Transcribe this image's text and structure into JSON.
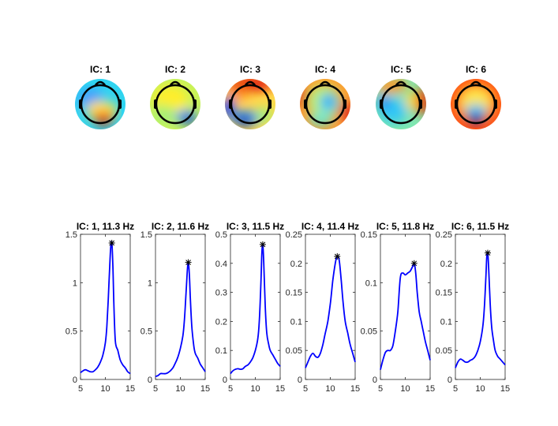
{
  "topomaps": [
    {
      "title": "IC: 1"
    },
    {
      "title": "IC: 2"
    },
    {
      "title": "IC: 3"
    },
    {
      "title": "IC: 4"
    },
    {
      "title": "IC: 5"
    },
    {
      "title": "IC: 6"
    }
  ],
  "chart_data": [
    {
      "type": "line",
      "title": "IC: 1, 11.3 Hz",
      "xlim": [
        5,
        15
      ],
      "ylim": [
        0,
        1.5
      ],
      "xticks": [
        "5",
        "10",
        "15"
      ],
      "yticks": [
        "0",
        "0.5",
        "1",
        "1.5"
      ],
      "peak": {
        "x": 11.3,
        "y": 1.41
      },
      "color": "#0000ff",
      "x": [
        5,
        5.5,
        6,
        6.5,
        7,
        7.5,
        8,
        8.5,
        9,
        9.5,
        10,
        10.3,
        10.6,
        10.9,
        11.1,
        11.3,
        11.5,
        11.7,
        12,
        12.5,
        13,
        13.5,
        14,
        14.5,
        15
      ],
      "y": [
        0.07,
        0.09,
        0.1,
        0.09,
        0.08,
        0.08,
        0.1,
        0.13,
        0.18,
        0.25,
        0.38,
        0.55,
        0.85,
        1.2,
        1.38,
        1.41,
        1.2,
        0.8,
        0.4,
        0.3,
        0.2,
        0.15,
        0.12,
        0.08,
        0.06
      ]
    },
    {
      "type": "line",
      "title": "IC: 2, 11.6 Hz",
      "xlim": [
        5,
        15
      ],
      "ylim": [
        0,
        1.5
      ],
      "xticks": [
        "5",
        "10",
        "15"
      ],
      "yticks": [
        "0",
        "0.5",
        "1",
        "1.5"
      ],
      "peak": {
        "x": 11.6,
        "y": 1.21
      },
      "color": "#0000ff",
      "x": [
        5,
        5.5,
        6,
        6.5,
        7,
        7.5,
        8,
        8.5,
        9,
        9.5,
        10,
        10.5,
        10.8,
        11.1,
        11.4,
        11.6,
        11.8,
        12,
        12.3,
        12.7,
        13,
        13.5,
        14,
        14.5,
        15
      ],
      "y": [
        0.03,
        0.04,
        0.06,
        0.06,
        0.06,
        0.07,
        0.09,
        0.12,
        0.17,
        0.23,
        0.32,
        0.45,
        0.6,
        0.85,
        1.12,
        1.21,
        1.1,
        0.85,
        0.55,
        0.35,
        0.27,
        0.22,
        0.16,
        0.12,
        0.08
      ]
    },
    {
      "type": "line",
      "title": "IC: 3, 11.5 Hz",
      "xlim": [
        5,
        15
      ],
      "ylim": [
        0,
        0.5
      ],
      "xticks": [
        "5",
        "10",
        "15"
      ],
      "yticks": [
        "0",
        "0.1",
        "0.2",
        "0.3",
        "0.4",
        "0.5"
      ],
      "peak": {
        "x": 11.5,
        "y": 0.465
      },
      "color": "#0000ff",
      "x": [
        5,
        5.5,
        6,
        6.5,
        7,
        7.5,
        8,
        8.5,
        9,
        9.5,
        10,
        10.5,
        10.8,
        11.1,
        11.3,
        11.5,
        11.7,
        12,
        12.3,
        12.7,
        13,
        13.5,
        14,
        14.5,
        15
      ],
      "y": [
        0.02,
        0.03,
        0.035,
        0.037,
        0.035,
        0.037,
        0.045,
        0.05,
        0.06,
        0.075,
        0.1,
        0.14,
        0.2,
        0.32,
        0.43,
        0.465,
        0.4,
        0.25,
        0.16,
        0.12,
        0.1,
        0.085,
        0.07,
        0.055,
        0.045
      ]
    },
    {
      "type": "line",
      "title": "IC: 4, 11.4 Hz",
      "xlim": [
        5,
        15
      ],
      "ylim": [
        0,
        0.25
      ],
      "xticks": [
        "5",
        "10",
        "15"
      ],
      "yticks": [
        "0",
        "0.05",
        "0.1",
        "0.15",
        "0.2",
        "0.25"
      ],
      "peak": {
        "x": 11.4,
        "y": 0.212
      },
      "color": "#0000ff",
      "x": [
        5,
        5.5,
        6,
        6.5,
        7,
        7.5,
        8,
        8.5,
        9,
        9.5,
        10,
        10.5,
        11,
        11.4,
        11.8,
        12.2,
        12.6,
        13,
        13.5,
        14,
        14.5,
        15
      ],
      "y": [
        0.02,
        0.03,
        0.04,
        0.045,
        0.04,
        0.038,
        0.045,
        0.06,
        0.08,
        0.1,
        0.13,
        0.17,
        0.2,
        0.212,
        0.205,
        0.17,
        0.13,
        0.1,
        0.08,
        0.06,
        0.045,
        0.03
      ]
    },
    {
      "type": "line",
      "title": "IC: 5, 11.8 Hz",
      "xlim": [
        5,
        15
      ],
      "ylim": [
        0,
        0.15
      ],
      "xticks": [
        "5",
        "10",
        "15"
      ],
      "yticks": [
        "0",
        "0.05",
        "0.1",
        "0.15"
      ],
      "peak": {
        "x": 11.8,
        "y": 0.12
      },
      "color": "#0000ff",
      "x": [
        5,
        5.5,
        6,
        6.5,
        7,
        7.5,
        8,
        8.5,
        9,
        9.5,
        10,
        10.5,
        11,
        11.5,
        11.8,
        12.1,
        12.4,
        12.8,
        13.2,
        13.6,
        14,
        14.5,
        15
      ],
      "y": [
        0.01,
        0.02,
        0.028,
        0.03,
        0.03,
        0.035,
        0.05,
        0.07,
        0.105,
        0.11,
        0.108,
        0.11,
        0.112,
        0.117,
        0.12,
        0.11,
        0.09,
        0.07,
        0.06,
        0.05,
        0.04,
        0.03,
        0.02
      ]
    },
    {
      "type": "line",
      "title": "IC: 6, 11.5 Hz",
      "xlim": [
        5,
        15
      ],
      "ylim": [
        0,
        0.25
      ],
      "xticks": [
        "5",
        "10",
        "15"
      ],
      "yticks": [
        "0",
        "0.05",
        "0.1",
        "0.15",
        "0.2",
        "0.25"
      ],
      "peak": {
        "x": 11.5,
        "y": 0.218
      },
      "color": "#0000ff",
      "x": [
        5,
        5.5,
        6,
        6.5,
        7,
        7.5,
        8,
        8.5,
        9,
        9.5,
        10,
        10.5,
        10.8,
        11.1,
        11.3,
        11.5,
        11.7,
        12,
        12.3,
        12.7,
        13,
        13.5,
        14,
        14.5,
        15
      ],
      "y": [
        0.02,
        0.03,
        0.035,
        0.033,
        0.03,
        0.03,
        0.033,
        0.035,
        0.04,
        0.05,
        0.065,
        0.09,
        0.12,
        0.17,
        0.21,
        0.218,
        0.19,
        0.13,
        0.09,
        0.065,
        0.05,
        0.04,
        0.035,
        0.03,
        0.025
      ]
    }
  ]
}
